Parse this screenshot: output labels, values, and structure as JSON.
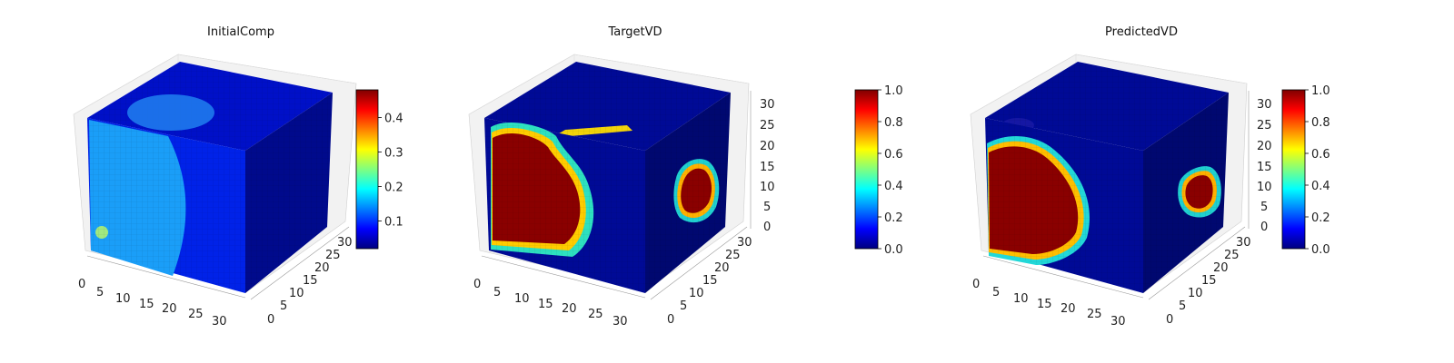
{
  "chart_data": [
    {
      "type": "voxel-3d",
      "title": "InitialComp",
      "colormap": "jet",
      "grid_size": 32,
      "axis_ticks": {
        "x": [
          "0",
          "5",
          "10",
          "15",
          "20",
          "25",
          "30"
        ],
        "y": [
          "0",
          "5",
          "10",
          "15",
          "20",
          "25",
          "30"
        ],
        "z": []
      },
      "colorbar": {
        "range": [
          0.02,
          0.48
        ],
        "ticks": [
          "0.1",
          "0.2",
          "0.3",
          "0.4"
        ],
        "tick_values": [
          0.1,
          0.2,
          0.3,
          0.4
        ]
      },
      "field_description": "low values (about 0.05) everywhere; column of about 0.2 on left front face; blob of 0.2 on top face"
    },
    {
      "type": "voxel-3d",
      "title": "TargetVD",
      "colormap": "jet",
      "grid_size": 32,
      "axis_ticks": {
        "x": [
          "0",
          "5",
          "10",
          "15",
          "20",
          "25",
          "30"
        ],
        "y": [
          "0",
          "5",
          "10",
          "15",
          "20",
          "25",
          "30"
        ],
        "z": [
          "0",
          "5",
          "10",
          "15",
          "20",
          "25",
          "30"
        ]
      },
      "colorbar": {
        "range": [
          0.0,
          1.0
        ],
        "ticks": [
          "0.0",
          "0.2",
          "0.4",
          "0.6",
          "0.8",
          "1.0"
        ],
        "tick_values": [
          0,
          0.2,
          0.4,
          0.6,
          0.8,
          1.0
        ]
      },
      "field_description": "background 0; large region of 1.0 on front face left; small region of 1.0 on right face; thin ridge on top"
    },
    {
      "type": "voxel-3d",
      "title": "PredictedVD",
      "colormap": "jet",
      "grid_size": 32,
      "axis_ticks": {
        "x": [
          "0",
          "5",
          "10",
          "15",
          "20",
          "25",
          "30"
        ],
        "y": [
          "0",
          "5",
          "10",
          "15",
          "20",
          "25",
          "30"
        ],
        "z": [
          "0",
          "5",
          "10",
          "15",
          "20",
          "25",
          "30"
        ]
      },
      "colorbar": {
        "range": [
          0.0,
          1.0
        ],
        "ticks": [
          "0.0",
          "0.2",
          "0.4",
          "0.6",
          "0.8",
          "1.0"
        ],
        "tick_values": [
          0,
          0.2,
          0.4,
          0.6,
          0.8,
          1.0
        ]
      },
      "field_description": "background 0; large half-disc of 1.0 on front face left; small region of 1.0 on right face"
    }
  ]
}
